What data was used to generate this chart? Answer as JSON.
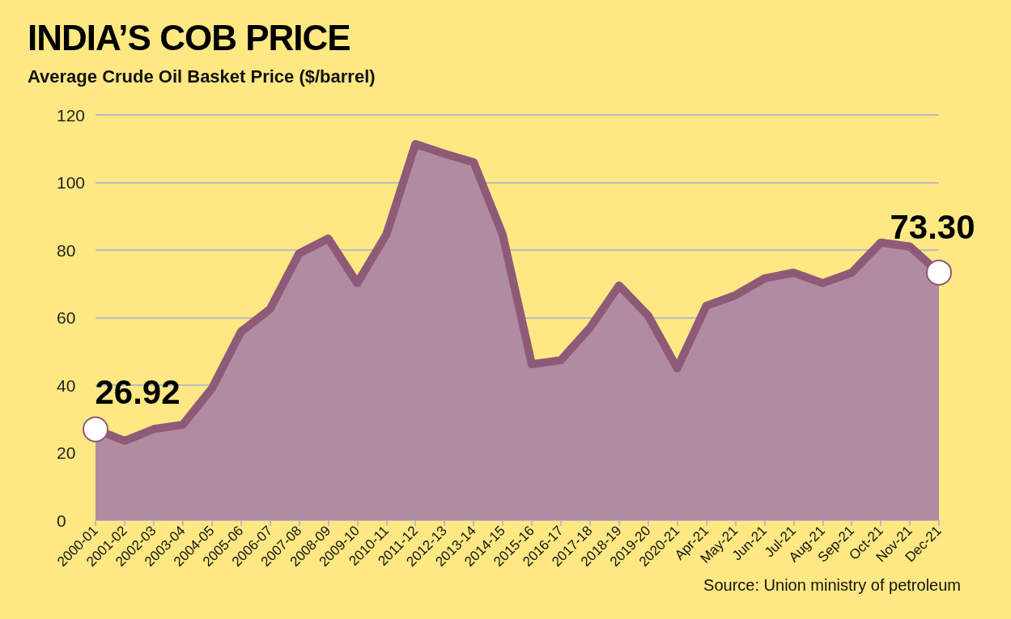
{
  "chart_data": {
    "type": "area",
    "title": "INDIA’S COB PRICE",
    "subtitle": "Average Crude Oil Basket Price ($/barrel)",
    "categories": [
      "2000-01",
      "2001-02",
      "2002-03",
      "2003-04",
      "2004-05",
      "2005-06",
      "2006-07",
      "2007-08",
      "2008-09",
      "2009-10",
      "2010-11",
      "2011-12",
      "2012-13",
      "2013-14",
      "2014-15",
      "2015-16",
      "2016-17",
      "2017-18",
      "2018-19",
      "2019-20",
      "2020-21",
      "Apr-21",
      "May-21",
      "Jun-21",
      "Jul-21",
      "Aug-21",
      "Sep-21",
      "Oct-21",
      "Nov-21",
      "Dec-21"
    ],
    "values": [
      26.92,
      23.5,
      27,
      28.3,
      39,
      55.8,
      62.5,
      79,
      83.4,
      70.2,
      84.6,
      111.4,
      108.5,
      106,
      84.5,
      46.2,
      47.4,
      57,
      69.5,
      60.6,
      45,
      63.5,
      66.6,
      71.6,
      73.3,
      70.2,
      73.3,
      82.2,
      81,
      73.3
    ],
    "value_labels": [
      "26.92",
      null,
      null,
      null,
      null,
      null,
      null,
      null,
      null,
      null,
      null,
      null,
      null,
      null,
      null,
      null,
      null,
      null,
      null,
      null,
      null,
      null,
      null,
      null,
      null,
      null,
      null,
      null,
      null,
      "73.30"
    ],
    "color": "#8e5a78",
    "ylim": [
      0,
      120
    ],
    "yticks": [
      0,
      20,
      40,
      60,
      80,
      100,
      120
    ],
    "grid": "y",
    "annotations": [
      "Source: Union ministry of petroleum"
    ]
  }
}
